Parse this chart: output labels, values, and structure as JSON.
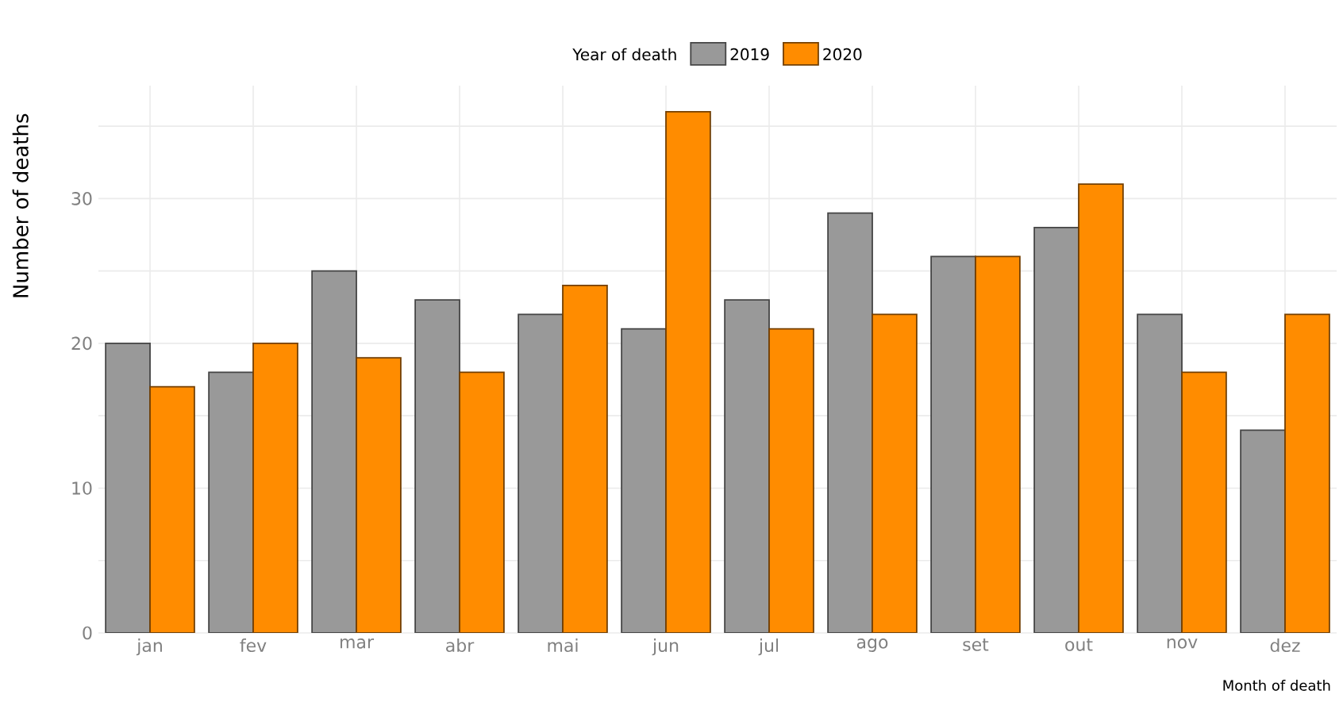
{
  "chart_data": {
    "type": "bar",
    "xlabel": "Month of death",
    "ylabel": "Number of deaths",
    "legend_title": "Year of death",
    "legend": "top",
    "categories": [
      "jan",
      "fev",
      "mar",
      "abr",
      "mai",
      "jun",
      "jul",
      "ago",
      "set",
      "out",
      "nov",
      "dez"
    ],
    "series": [
      {
        "name": "2019",
        "color": "#999999",
        "values": [
          20,
          18,
          25,
          23,
          22,
          21,
          23,
          29,
          26,
          28,
          22,
          14
        ]
      },
      {
        "name": "2020",
        "color": "#ff8c00",
        "values": [
          17,
          20,
          19,
          18,
          24,
          36,
          21,
          22,
          26,
          31,
          18,
          22
        ]
      }
    ],
    "ylim": [
      0,
      37.8
    ],
    "yticks": [
      0,
      {
        "value": 5,
        "label": null
      },
      10,
      {
        "value": 15,
        "label": null
      },
      20,
      {
        "value": 25,
        "label": null
      },
      30,
      {
        "value": 35,
        "label": null
      }
    ],
    "grid": true
  }
}
